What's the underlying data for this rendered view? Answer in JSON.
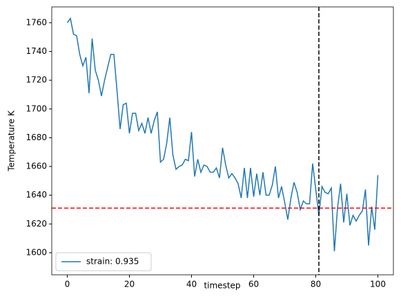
{
  "chart_data": {
    "type": "line",
    "x_label": "timestep",
    "y_label": "Temperature K",
    "x": [
      0,
      1,
      2,
      3,
      4,
      5,
      6,
      7,
      8,
      9,
      10,
      11,
      12,
      13,
      14,
      15,
      16,
      17,
      18,
      19,
      20,
      21,
      22,
      23,
      24,
      25,
      26,
      27,
      28,
      29,
      30,
      31,
      32,
      33,
      34,
      35,
      36,
      37,
      38,
      39,
      40,
      41,
      42,
      43,
      44,
      45,
      46,
      47,
      48,
      49,
      50,
      51,
      52,
      53,
      54,
      55,
      56,
      57,
      58,
      59,
      60,
      61,
      62,
      63,
      64,
      65,
      66,
      67,
      68,
      69,
      70,
      71,
      72,
      73,
      74,
      75,
      76,
      77,
      78,
      79,
      80,
      81,
      82,
      83,
      84,
      85,
      86,
      87,
      88,
      89,
      90,
      91,
      92,
      93,
      94,
      95,
      96,
      97,
      98,
      99,
      100
    ],
    "series": [
      {
        "name": "strain: 0.935",
        "color": "#1f77b4",
        "values": [
          1760,
          1763,
          1752,
          1751,
          1738,
          1730,
          1736,
          1711,
          1749,
          1727,
          1720,
          1709,
          1720,
          1729,
          1738,
          1738,
          1713,
          1686,
          1703,
          1704,
          1683,
          1697,
          1697,
          1685,
          1690,
          1683,
          1694,
          1683,
          1692,
          1698,
          1663,
          1665,
          1676,
          1694,
          1668,
          1658,
          1660,
          1661,
          1665,
          1664,
          1684,
          1653,
          1665,
          1656,
          1661,
          1660,
          1656,
          1656,
          1659,
          1652,
          1673,
          1661,
          1652,
          1655,
          1652,
          1648,
          1638,
          1659,
          1638,
          1659,
          1639,
          1655,
          1640,
          1656,
          1640,
          1640,
          1647,
          1660,
          1638,
          1646,
          1635,
          1623,
          1638,
          1649,
          1642,
          1630,
          1636,
          1634,
          1634,
          1662,
          1644,
          1626,
          1646,
          1642,
          1641,
          1645,
          1601,
          1631,
          1648,
          1621,
          1641,
          1619,
          1626,
          1622,
          1626,
          1629,
          1644,
          1605,
          1632,
          1616,
          1654
        ]
      }
    ],
    "hline": 1631,
    "hline_color": "#ff0000",
    "vline": 81,
    "vline_color": "#000000",
    "xlim": [
      -5,
      105
    ],
    "ylim": [
      1584.6,
      1771
    ],
    "xticks": [
      0,
      20,
      40,
      60,
      80,
      100
    ],
    "yticks": [
      1600,
      1620,
      1640,
      1660,
      1680,
      1700,
      1720,
      1740,
      1760
    ],
    "legend": "lower left"
  }
}
